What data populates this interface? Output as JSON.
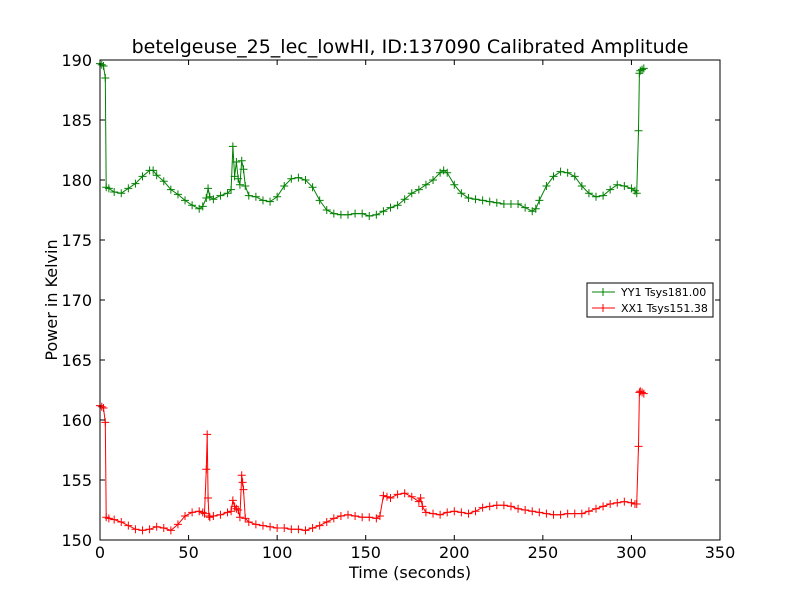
{
  "chart_data": {
    "type": "line",
    "title": "betelgeuse_25_lec_lowHI, ID:137090 Calibrated Amplitude",
    "xlabel": "Time (seconds)",
    "ylabel": "Power in Kelvin",
    "xlim": [
      0,
      350
    ],
    "ylim": [
      150,
      190
    ],
    "xticks": [
      0,
      50,
      100,
      150,
      200,
      250,
      300,
      350
    ],
    "yticks": [
      150,
      155,
      160,
      165,
      170,
      175,
      180,
      185,
      190
    ],
    "grid": false,
    "legend_position": "center-right",
    "marker": "+",
    "series": [
      {
        "name": "YY1 Tsys181.00",
        "color": "#008000",
        "x": [
          0,
          1,
          2,
          3,
          3.5,
          5,
          8,
          12,
          16,
          20,
          24,
          28,
          30,
          32,
          36,
          40,
          44,
          48,
          52,
          56,
          58,
          60,
          61,
          62,
          64,
          68,
          72,
          74,
          75,
          76,
          77,
          78,
          79,
          80,
          81,
          82,
          84,
          88,
          92,
          96,
          100,
          104,
          108,
          112,
          116,
          120,
          124,
          128,
          132,
          136,
          140,
          144,
          148,
          152,
          156,
          160,
          164,
          168,
          172,
          176,
          180,
          184,
          188,
          192,
          194,
          196,
          200,
          204,
          208,
          212,
          216,
          220,
          224,
          228,
          232,
          236,
          240,
          244,
          246,
          248,
          252,
          256,
          260,
          264,
          268,
          272,
          276,
          280,
          284,
          288,
          292,
          296,
          300,
          302,
          303,
          304,
          304.5,
          305,
          306,
          307
        ],
        "values": [
          189.7,
          189.6,
          189.5,
          188.5,
          179.4,
          179.3,
          179.0,
          178.9,
          179.3,
          179.7,
          180.3,
          180.8,
          180.8,
          180.4,
          179.9,
          179.2,
          178.8,
          178.3,
          177.9,
          177.6,
          177.8,
          178.5,
          179.3,
          178.6,
          178.4,
          178.7,
          178.9,
          179.2,
          182.8,
          180.3,
          181.5,
          180.1,
          179.6,
          181.6,
          180.9,
          179.5,
          178.7,
          178.6,
          178.3,
          178.2,
          178.6,
          179.5,
          180.1,
          180.2,
          180.0,
          179.4,
          178.3,
          177.5,
          177.2,
          177.1,
          177.1,
          177.2,
          177.2,
          177.0,
          177.1,
          177.4,
          177.7,
          177.9,
          178.4,
          178.9,
          179.2,
          179.6,
          180.0,
          180.6,
          180.8,
          180.6,
          179.6,
          178.9,
          178.5,
          178.4,
          178.3,
          178.2,
          178.1,
          178.0,
          178.0,
          178.0,
          177.7,
          177.4,
          177.6,
          178.3,
          179.5,
          180.3,
          180.7,
          180.6,
          180.3,
          179.5,
          178.9,
          178.6,
          178.7,
          179.2,
          179.6,
          179.5,
          179.3,
          179.1,
          178.9,
          184.1,
          188.9,
          189.1,
          189.2,
          189.3
        ]
      },
      {
        "name": "XX1 Tsys151.38",
        "color": "#ff0000",
        "x": [
          0,
          1,
          2,
          3,
          3.5,
          5,
          8,
          12,
          16,
          20,
          24,
          28,
          32,
          36,
          40,
          44,
          48,
          52,
          56,
          58,
          59,
          60,
          60.5,
          61,
          61.5,
          62,
          64,
          68,
          72,
          74,
          75,
          76,
          77,
          78,
          79,
          80,
          80.5,
          81,
          82,
          84,
          88,
          92,
          96,
          100,
          104,
          108,
          112,
          116,
          120,
          124,
          128,
          132,
          136,
          140,
          144,
          148,
          152,
          156,
          158,
          160,
          162,
          164,
          168,
          172,
          176,
          180,
          181,
          182,
          184,
          188,
          192,
          196,
          200,
          204,
          208,
          212,
          216,
          220,
          224,
          228,
          232,
          236,
          240,
          244,
          248,
          252,
          256,
          260,
          264,
          268,
          272,
          276,
          280,
          284,
          288,
          292,
          296,
          300,
          302,
          303,
          304,
          304.5,
          305,
          306,
          307
        ],
        "values": [
          161.2,
          161.1,
          161.0,
          159.8,
          151.9,
          151.8,
          151.7,
          151.5,
          151.2,
          150.9,
          150.8,
          150.9,
          151.1,
          151.0,
          150.8,
          151.3,
          152.0,
          152.3,
          152.4,
          152.3,
          152.2,
          155.9,
          158.8,
          153.5,
          152.0,
          151.9,
          152.0,
          152.1,
          152.3,
          152.4,
          153.3,
          152.8,
          152.6,
          152.5,
          151.9,
          155.4,
          154.8,
          154.2,
          151.8,
          151.5,
          151.3,
          151.2,
          151.1,
          151.0,
          151.0,
          150.9,
          150.9,
          150.8,
          151.0,
          151.2,
          151.5,
          151.8,
          152.0,
          152.1,
          152.0,
          151.9,
          151.9,
          151.8,
          152.0,
          153.7,
          153.6,
          153.5,
          153.8,
          153.9,
          153.6,
          153.2,
          153.5,
          152.8,
          152.3,
          152.2,
          152.1,
          152.3,
          152.4,
          152.3,
          152.2,
          152.4,
          152.7,
          152.8,
          152.9,
          152.9,
          152.8,
          152.6,
          152.5,
          152.4,
          152.3,
          152.2,
          152.1,
          152.1,
          152.2,
          152.2,
          152.2,
          152.4,
          152.6,
          152.8,
          153.0,
          153.1,
          153.2,
          153.1,
          153.0,
          153.0,
          157.8,
          162.3,
          162.4,
          162.3,
          162.2
        ]
      }
    ]
  }
}
